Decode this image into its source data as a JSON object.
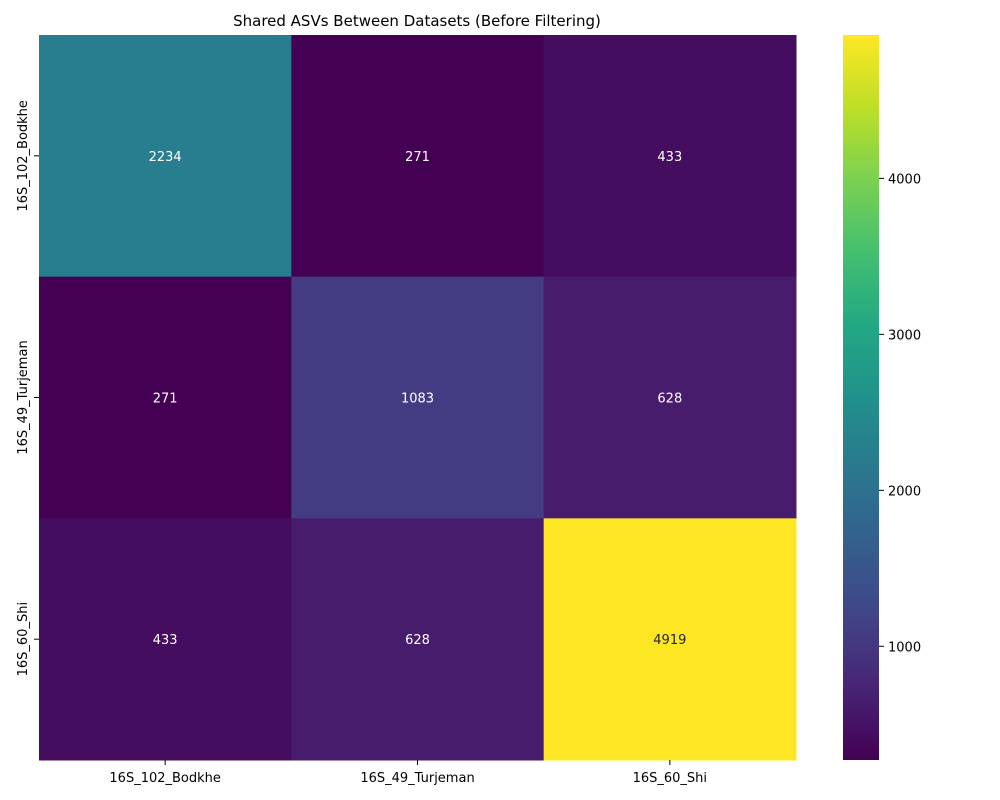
{
  "chart_data": {
    "type": "heatmap",
    "title": "Shared ASVs Between Datasets (Before Filtering)",
    "xlabel": "",
    "ylabel": "",
    "x_labels": [
      "16S_102_Bodkhe",
      "16S_49_Turjeman",
      "16S_60_Shi"
    ],
    "y_labels": [
      "16S_102_Bodkhe",
      "16S_49_Turjeman",
      "16S_60_Shi"
    ],
    "values": [
      [
        2234,
        271,
        433
      ],
      [
        271,
        1083,
        628
      ],
      [
        433,
        628,
        4919
      ]
    ],
    "colormap": "viridis",
    "colorbar": {
      "min": 271,
      "max": 4919,
      "ticks": [
        1000,
        2000,
        3000,
        4000
      ]
    },
    "annotated": true,
    "grid": false
  }
}
